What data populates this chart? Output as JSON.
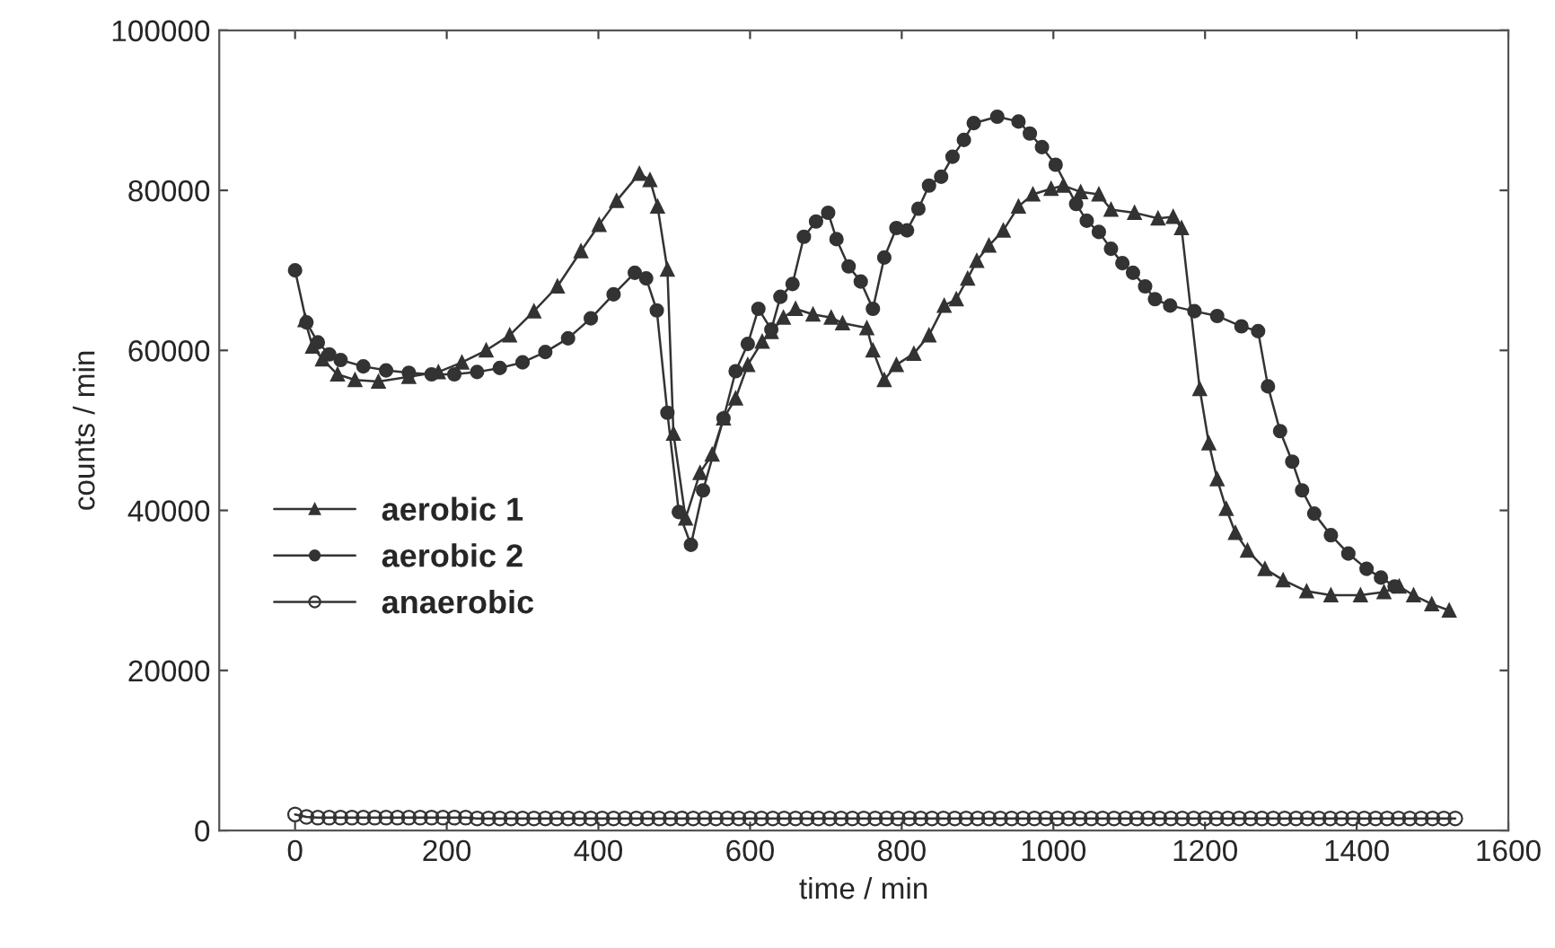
{
  "chart_data": {
    "type": "line",
    "xlabel": "time / min",
    "ylabel": "counts / min",
    "xlim": [
      -100,
      1600
    ],
    "ylim": [
      0,
      100000
    ],
    "xticks": [
      0,
      200,
      400,
      600,
      800,
      1000,
      1200,
      1400,
      1600
    ],
    "yticks": [
      0,
      20000,
      40000,
      60000,
      80000,
      100000
    ],
    "grid": false,
    "legend": "left",
    "line_style": "solid",
    "series": [
      {
        "name": "aerobic 1",
        "color": "#333333",
        "marker": "triangle",
        "x": [
          13,
          23,
          36,
          56,
          79,
          110,
          150,
          189,
          220,
          252,
          283,
          315,
          346,
          377,
          401,
          424,
          454,
          468,
          478,
          491,
          499,
          515,
          534,
          550,
          565,
          581,
          597,
          616,
          628,
          644,
          660,
          683,
          707,
          722,
          754,
          762,
          777,
          793,
          816,
          836,
          856,
          872,
          887,
          899,
          915,
          934,
          954,
          973,
          997,
          1013,
          1036,
          1060,
          1076,
          1107,
          1138,
          1158,
          1169,
          1193,
          1205,
          1216,
          1228,
          1240,
          1256,
          1279,
          1303,
          1334,
          1366,
          1405,
          1436,
          1456,
          1475,
          1499,
          1522
        ],
        "values": [
          63800,
          60500,
          58900,
          57000,
          56300,
          56100,
          56700,
          57300,
          58500,
          60000,
          61900,
          64900,
          68000,
          72400,
          75700,
          78700,
          82100,
          81300,
          78000,
          70100,
          49600,
          39000,
          44700,
          47000,
          51500,
          54000,
          58200,
          61100,
          62300,
          64100,
          65200,
          64500,
          64100,
          63400,
          62800,
          60000,
          56300,
          58200,
          59600,
          61900,
          65600,
          66400,
          69000,
          71200,
          73100,
          75000,
          78000,
          79500,
          80200,
          80600,
          79800,
          79500,
          77600,
          77200,
          76500,
          76700,
          75300,
          55200,
          48400,
          43900,
          40200,
          37200,
          35000,
          32700,
          31300,
          29900,
          29400,
          29400,
          29800,
          30500,
          29400,
          28300,
          27500
        ]
      },
      {
        "name": "aerobic 2",
        "color": "#333333",
        "marker": "circle",
        "x": [
          0,
          15,
          30,
          45,
          60,
          90,
          120,
          150,
          180,
          210,
          240,
          270,
          300,
          330,
          360,
          390,
          420,
          448,
          463,
          477,
          491,
          506,
          522,
          538,
          565,
          581,
          597,
          611,
          628,
          640,
          656,
          671,
          687,
          703,
          714,
          730,
          746,
          762,
          777,
          793,
          807,
          822,
          836,
          852,
          867,
          882,
          895,
          926,
          954,
          969,
          985,
          1003,
          1030,
          1044,
          1060,
          1076,
          1091,
          1105,
          1121,
          1134,
          1154,
          1186,
          1216,
          1248,
          1270,
          1283,
          1299,
          1315,
          1328,
          1344,
          1366,
          1389,
          1413,
          1432,
          1450
        ],
        "values": [
          70000,
          63500,
          61000,
          59500,
          58800,
          58000,
          57500,
          57200,
          57000,
          57000,
          57300,
          57800,
          58500,
          59800,
          61500,
          64000,
          67000,
          69700,
          69000,
          65000,
          52200,
          39800,
          35700,
          42500,
          51500,
          57400,
          60800,
          65200,
          62600,
          66700,
          68300,
          74200,
          76100,
          77200,
          73900,
          70500,
          68600,
          65200,
          71600,
          75300,
          75000,
          77700,
          80600,
          81700,
          84200,
          86300,
          88400,
          89200,
          88600,
          87100,
          85400,
          83200,
          78300,
          76200,
          74800,
          72700,
          70900,
          69700,
          68000,
          66400,
          65600,
          64900,
          64300,
          63000,
          62400,
          55500,
          49900,
          46100,
          42500,
          39600,
          36900,
          34600,
          32700,
          31600,
          30500
        ]
      },
      {
        "name": "anaerobic",
        "color": "#333333",
        "marker": "open_circle",
        "x": [
          0,
          15,
          30,
          45,
          60,
          75,
          90,
          105,
          120,
          135,
          150,
          165,
          180,
          195,
          210,
          225,
          240,
          255,
          270,
          285,
          300,
          315,
          330,
          345,
          360,
          375,
          390,
          405,
          420,
          435,
          450,
          465,
          480,
          495,
          510,
          525,
          540,
          555,
          570,
          585,
          600,
          615,
          630,
          645,
          660,
          675,
          690,
          705,
          720,
          735,
          750,
          765,
          780,
          795,
          810,
          825,
          840,
          855,
          870,
          885,
          900,
          915,
          930,
          945,
          960,
          975,
          990,
          1005,
          1020,
          1035,
          1050,
          1065,
          1080,
          1095,
          1110,
          1125,
          1140,
          1155,
          1170,
          1185,
          1200,
          1215,
          1230,
          1245,
          1260,
          1275,
          1290,
          1305,
          1320,
          1335,
          1350,
          1365,
          1380,
          1395,
          1410,
          1425,
          1440,
          1455,
          1470,
          1485,
          1500,
          1515,
          1530
        ],
        "values": [
          2000,
          1700,
          1600,
          1600,
          1600,
          1600,
          1600,
          1600,
          1600,
          1600,
          1600,
          1600,
          1600,
          1600,
          1600,
          1600,
          1500,
          1500,
          1500,
          1500,
          1500,
          1500,
          1500,
          1500,
          1500,
          1500,
          1500,
          1500,
          1500,
          1500,
          1500,
          1500,
          1500,
          1500,
          1500,
          1500,
          1500,
          1500,
          1500,
          1500,
          1500,
          1500,
          1500,
          1500,
          1500,
          1500,
          1500,
          1500,
          1500,
          1500,
          1500,
          1500,
          1500,
          1500,
          1500,
          1500,
          1500,
          1500,
          1500,
          1500,
          1500,
          1500,
          1500,
          1500,
          1500,
          1500,
          1500,
          1500,
          1500,
          1500,
          1500,
          1500,
          1500,
          1500,
          1500,
          1500,
          1500,
          1500,
          1500,
          1500,
          1500,
          1500,
          1500,
          1500,
          1500,
          1500,
          1500,
          1500,
          1500,
          1500,
          1500,
          1500,
          1500,
          1500,
          1500,
          1500,
          1500,
          1500,
          1500,
          1500,
          1500,
          1500,
          1500
        ]
      }
    ]
  }
}
